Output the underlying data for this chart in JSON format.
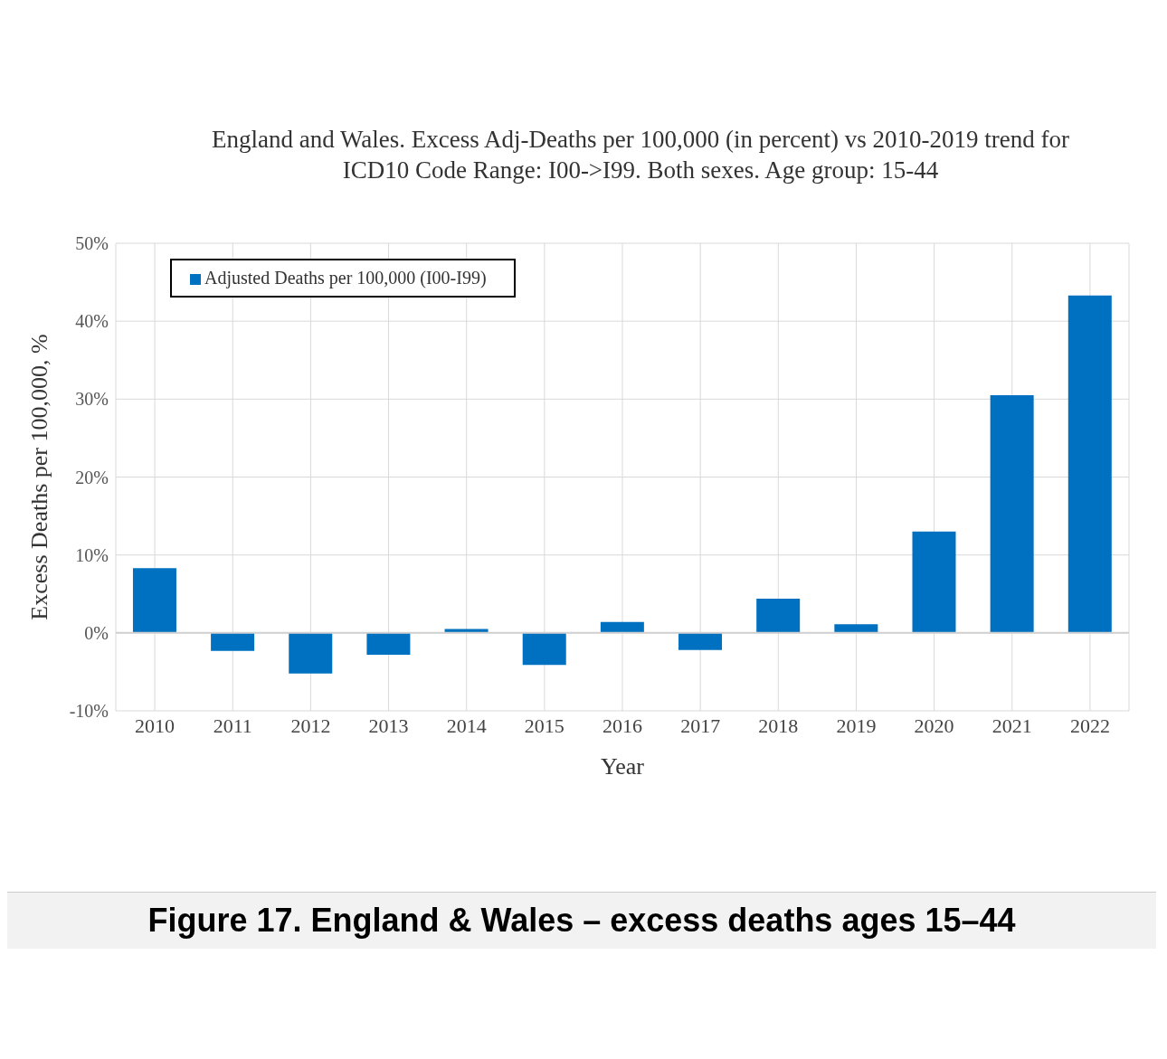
{
  "chart_data": {
    "type": "bar",
    "title": "England and Wales. Excess Adj-Deaths per 100,000 (in percent) vs 2010-2019 trend for ICD10 Code Range: I00->I99. Both sexes. Age group: 15-44",
    "xlabel": "Year",
    "ylabel": "Excess Deaths per 100,000, %",
    "categories": [
      "2010",
      "2011",
      "2012",
      "2013",
      "2014",
      "2015",
      "2016",
      "2017",
      "2018",
      "2019",
      "2020",
      "2021",
      "2022"
    ],
    "series": [
      {
        "name": "Adjusted Deaths per 100,000 (I00-I99)",
        "color": "#0070c0",
        "values": [
          8.3,
          -2.3,
          -5.2,
          -2.8,
          0.5,
          -4.1,
          1.4,
          -2.2,
          4.4,
          1.1,
          13.0,
          30.5,
          43.3
        ]
      }
    ],
    "ylim": [
      -10,
      50
    ],
    "yticks": [
      {
        "value": -10,
        "label": "-10%"
      },
      {
        "value": 0,
        "label": "0%"
      },
      {
        "value": 10,
        "label": "10%"
      },
      {
        "value": 20,
        "label": "20%"
      },
      {
        "value": 30,
        "label": "30%"
      },
      {
        "value": 40,
        "label": "40%"
      },
      {
        "value": 50,
        "label": "50%"
      }
    ],
    "grid": true,
    "legend": "top left",
    "annotations": [
      "Figure 17. England & Wales – excess deaths ages 15–44"
    ]
  }
}
